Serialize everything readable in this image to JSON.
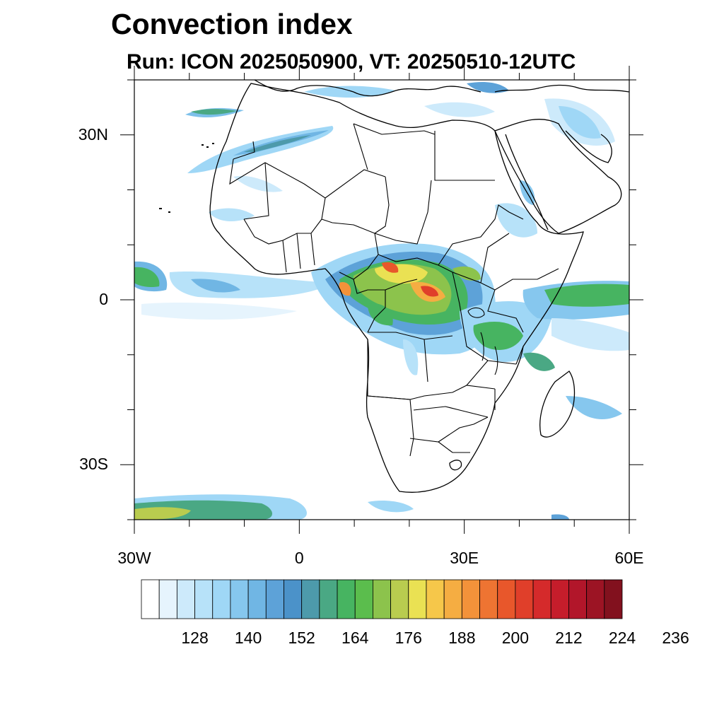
{
  "title": "Convection index",
  "subtitle": "Run: ICON 2025050900,  VT: 20250510-12UTC",
  "map": {
    "lon_range": [
      -30,
      60
    ],
    "lat_range": [
      -40,
      40
    ],
    "lat_labels": [
      {
        "lat": 30,
        "text": "30N"
      },
      {
        "lat": 0,
        "text": "0"
      },
      {
        "lat": -30,
        "text": "30S"
      }
    ],
    "lon_labels": [
      {
        "lon": -30,
        "text": "30W"
      },
      {
        "lon": 0,
        "text": "0"
      },
      {
        "lon": 30,
        "text": "30E"
      },
      {
        "lon": 60,
        "text": "60E"
      }
    ]
  },
  "colorbar": {
    "colors": [
      "#ffffff",
      "#e6f4fd",
      "#cdeafb",
      "#b7e2f9",
      "#9fd7f6",
      "#86c7ee",
      "#70b6e4",
      "#5da2d8",
      "#4b92c9",
      "#4d9aab",
      "#4aa884",
      "#47b461",
      "#5bbd4d",
      "#8cc34c",
      "#b9cc4f",
      "#eae153",
      "#f6c74a",
      "#f5ad42",
      "#f3923a",
      "#ee7432",
      "#e8572b",
      "#e03f2a",
      "#d52a2b",
      "#c51d2b",
      "#b2162a",
      "#9c1424",
      "#82111e"
    ],
    "labels": [
      "128",
      "140",
      "152",
      "164",
      "176",
      "188",
      "200",
      "212",
      "224",
      "236"
    ]
  }
}
